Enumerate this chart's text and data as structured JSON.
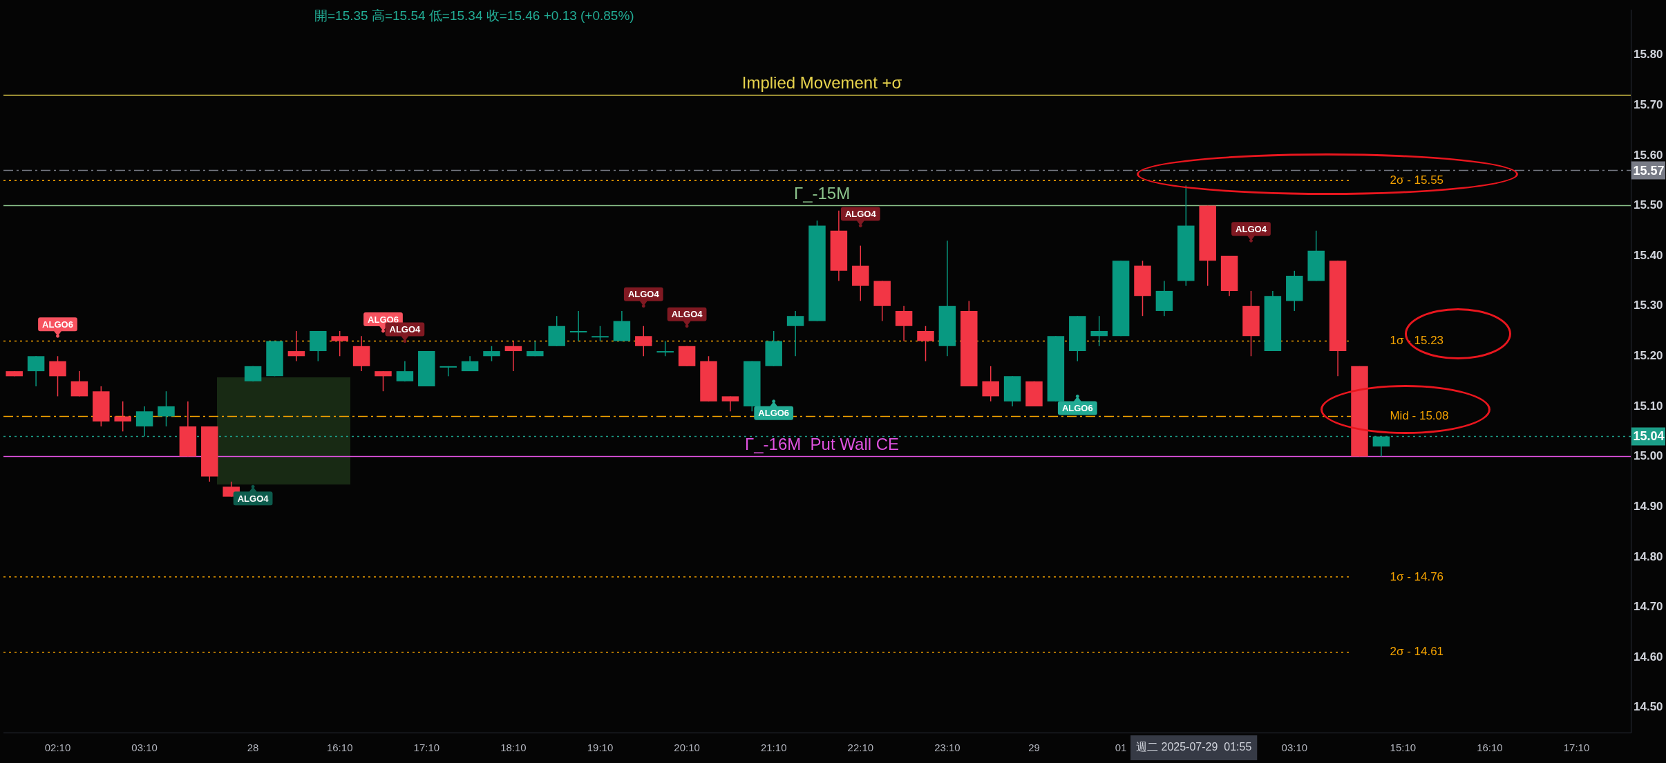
{
  "chart_data": {
    "type": "candlestick",
    "subtitle": "開=15.35 高=15.54 低=15.34 收=15.46 +0.13 (+0.85%)",
    "categories": [
      null,
      null,
      "02:10",
      null,
      null,
      null,
      "03:10",
      null,
      null,
      null,
      null,
      "28",
      null,
      null,
      null,
      "16:10",
      null,
      null,
      null,
      "17:10",
      null,
      null,
      null,
      "18:10",
      null,
      null,
      null,
      "19:10",
      null,
      null,
      null,
      "20:10",
      null,
      null,
      null,
      "21:10",
      null,
      null,
      null,
      "22:10",
      null,
      null,
      null,
      "23:10",
      null,
      null,
      null,
      "29",
      null,
      null,
      null,
      "01",
      null,
      null,
      null,
      null,
      null,
      null,
      null,
      "03:10",
      null,
      null,
      null,
      null,
      "15:10",
      null,
      null,
      null,
      "16:10",
      null,
      null,
      null,
      "17:10",
      null,
      null
    ],
    "ohlc": [
      [
        15.17,
        15.17,
        15.16,
        15.16
      ],
      [
        15.17,
        15.2,
        15.14,
        15.2
      ],
      [
        15.19,
        15.2,
        15.12,
        15.16
      ],
      [
        15.15,
        15.17,
        15.12,
        15.12
      ],
      [
        15.13,
        15.14,
        15.06,
        15.07
      ],
      [
        15.08,
        15.11,
        15.05,
        15.07
      ],
      [
        15.06,
        15.1,
        15.04,
        15.09
      ],
      [
        15.08,
        15.13,
        15.06,
        15.1
      ],
      [
        15.06,
        15.11,
        15.0,
        15.0
      ],
      [
        15.06,
        15.06,
        14.95,
        14.96
      ],
      [
        14.94,
        14.95,
        14.92,
        14.92
      ],
      [
        15.15,
        15.18,
        15.15,
        15.18
      ],
      [
        15.16,
        15.23,
        15.16,
        15.23
      ],
      [
        15.21,
        15.25,
        15.19,
        15.2
      ],
      [
        15.21,
        15.25,
        15.19,
        15.25
      ],
      [
        15.24,
        15.25,
        15.2,
        15.23
      ],
      [
        15.22,
        15.24,
        15.17,
        15.18
      ],
      [
        15.17,
        15.17,
        15.13,
        15.16
      ],
      [
        15.15,
        15.19,
        15.15,
        15.17
      ],
      [
        15.14,
        15.21,
        15.14,
        15.21
      ],
      [
        15.18,
        15.18,
        15.16,
        15.18
      ],
      [
        15.17,
        15.2,
        15.17,
        15.19
      ],
      [
        15.2,
        15.22,
        15.19,
        15.21
      ],
      [
        15.22,
        15.23,
        15.17,
        15.21
      ],
      [
        15.2,
        15.23,
        15.2,
        15.21
      ],
      [
        15.22,
        15.28,
        15.22,
        15.26
      ],
      [
        15.25,
        15.29,
        15.23,
        15.25
      ],
      [
        15.24,
        15.26,
        15.23,
        15.24
      ],
      [
        15.23,
        15.29,
        15.23,
        15.27
      ],
      [
        15.24,
        15.26,
        15.2,
        15.22
      ],
      [
        15.21,
        15.23,
        15.2,
        15.21
      ],
      [
        15.22,
        15.22,
        15.18,
        15.18
      ],
      [
        15.19,
        15.2,
        15.11,
        15.11
      ],
      [
        15.12,
        15.12,
        15.09,
        15.11
      ],
      [
        15.1,
        15.19,
        15.09,
        15.19
      ],
      [
        15.18,
        15.25,
        15.18,
        15.23
      ],
      [
        15.26,
        15.29,
        15.2,
        15.28
      ],
      [
        15.27,
        15.47,
        15.27,
        15.46
      ],
      [
        15.45,
        15.49,
        15.35,
        15.37
      ],
      [
        15.38,
        15.42,
        15.31,
        15.34
      ],
      [
        15.35,
        15.35,
        15.27,
        15.3
      ],
      [
        15.29,
        15.3,
        15.23,
        15.26
      ],
      [
        15.25,
        15.26,
        15.19,
        15.23
      ],
      [
        15.22,
        15.43,
        15.2,
        15.3
      ],
      [
        15.29,
        15.31,
        15.14,
        15.14
      ],
      [
        15.15,
        15.18,
        15.11,
        15.12
      ],
      [
        15.11,
        15.16,
        15.1,
        15.16
      ],
      [
        15.15,
        15.15,
        15.1,
        15.1
      ],
      [
        15.11,
        15.24,
        15.11,
        15.24
      ],
      [
        15.21,
        15.28,
        15.19,
        15.28
      ],
      [
        15.24,
        15.28,
        15.22,
        15.25
      ],
      [
        15.24,
        15.39,
        15.24,
        15.39
      ],
      [
        15.38,
        15.39,
        15.28,
        15.32
      ],
      [
        15.29,
        15.35,
        15.28,
        15.33
      ],
      [
        15.35,
        15.54,
        15.34,
        15.46
      ],
      [
        15.5,
        15.5,
        15.34,
        15.39
      ],
      [
        15.4,
        15.4,
        15.32,
        15.33
      ],
      [
        15.3,
        15.33,
        15.2,
        15.24
      ],
      [
        15.21,
        15.33,
        15.21,
        15.32
      ],
      [
        15.31,
        15.37,
        15.29,
        15.36
      ],
      [
        15.35,
        15.45,
        15.35,
        15.41
      ],
      [
        15.39,
        15.39,
        15.16,
        15.21
      ],
      [
        15.18,
        15.18,
        15.0,
        15.0
      ],
      [
        15.02,
        15.04,
        15.0,
        15.04
      ],
      null,
      null,
      null,
      null,
      null,
      null,
      null,
      null,
      null,
      null,
      null
    ],
    "series": [
      {
        "type": "scatter",
        "color": "#f7525f",
        "values": [
          null,
          null,
          15.24,
          null,
          null,
          null,
          null,
          null,
          null,
          null,
          null,
          null,
          null,
          null,
          null,
          null,
          null,
          15.25,
          null,
          null,
          null,
          null,
          null,
          null,
          null,
          null,
          null,
          null,
          null,
          null,
          null,
          null,
          null,
          null,
          null,
          null,
          null,
          null,
          null,
          null,
          null,
          null,
          null,
          null,
          null,
          null,
          null,
          null,
          null,
          null,
          null,
          null,
          null,
          null,
          null,
          null,
          null,
          null,
          null,
          null,
          null,
          null,
          null,
          null,
          null,
          null,
          null,
          null,
          null,
          null,
          null,
          null,
          null,
          null,
          null
        ],
        "value_labels": [
          null,
          null,
          "ALGO6",
          null,
          null,
          null,
          null,
          null,
          null,
          null,
          null,
          null,
          null,
          null,
          null,
          null,
          null,
          "ALGO6",
          null,
          null,
          null,
          null,
          null,
          null,
          null,
          null,
          null,
          null,
          null,
          null,
          null,
          null,
          null,
          null,
          null,
          null,
          null,
          null,
          null,
          null,
          null,
          null,
          null,
          null,
          null,
          null,
          null,
          null,
          null,
          null,
          null,
          null,
          null,
          null,
          null,
          null,
          null,
          null,
          null,
          null,
          null,
          null,
          null,
          null,
          null,
          null,
          null,
          null,
          null,
          null,
          null,
          null,
          null,
          null,
          null
        ]
      },
      {
        "type": "scatter",
        "color": "#801922",
        "values": [
          null,
          null,
          null,
          null,
          null,
          null,
          null,
          null,
          null,
          null,
          null,
          null,
          null,
          null,
          null,
          null,
          null,
          null,
          15.23,
          null,
          null,
          null,
          null,
          null,
          null,
          null,
          null,
          null,
          null,
          15.3,
          null,
          15.26,
          null,
          null,
          null,
          null,
          null,
          null,
          null,
          15.46,
          null,
          null,
          null,
          null,
          null,
          null,
          null,
          null,
          null,
          null,
          null,
          null,
          null,
          null,
          null,
          null,
          null,
          15.43,
          null,
          null,
          null,
          null,
          null,
          null,
          null,
          null,
          null,
          null,
          null,
          null,
          null,
          null,
          null,
          null,
          null
        ],
        "value_labels": [
          null,
          null,
          null,
          null,
          null,
          null,
          null,
          null,
          null,
          null,
          null,
          null,
          null,
          null,
          null,
          null,
          null,
          null,
          "ALGO4",
          null,
          null,
          null,
          null,
          null,
          null,
          null,
          null,
          null,
          null,
          "ALGO4",
          null,
          "ALGO4",
          null,
          null,
          null,
          null,
          null,
          null,
          null,
          "ALGO4",
          null,
          null,
          null,
          null,
          null,
          null,
          null,
          null,
          null,
          null,
          null,
          null,
          null,
          null,
          null,
          null,
          null,
          "ALGO4",
          null,
          null,
          null,
          null,
          null,
          null,
          null,
          null,
          null,
          null,
          null,
          null,
          null,
          null,
          null,
          null,
          null
        ]
      },
      {
        "type": "scatter",
        "color": "#0d5c4d",
        "values": [
          null,
          null,
          null,
          null,
          null,
          null,
          null,
          null,
          null,
          null,
          null,
          14.94,
          null,
          null,
          null,
          null,
          null,
          null,
          null,
          null,
          null,
          null,
          null,
          null,
          null,
          null,
          null,
          null,
          null,
          null,
          null,
          null,
          null,
          null,
          null,
          null,
          null,
          null,
          null,
          null,
          null,
          null,
          null,
          null,
          null,
          null,
          null,
          null,
          null,
          null,
          null,
          null,
          null,
          null,
          null,
          null,
          null,
          null,
          null,
          null,
          null,
          null,
          null,
          null,
          null,
          null,
          null,
          null,
          null,
          null,
          null,
          null,
          null,
          null,
          null
        ],
        "value_labels": [
          null,
          null,
          null,
          null,
          null,
          null,
          null,
          null,
          null,
          null,
          null,
          "ALGO4",
          null,
          null,
          null,
          null,
          null,
          null,
          null,
          null,
          null,
          null,
          null,
          null,
          null,
          null,
          null,
          null,
          null,
          null,
          null,
          null,
          null,
          null,
          null,
          null,
          null,
          null,
          null,
          null,
          null,
          null,
          null,
          null,
          null,
          null,
          null,
          null,
          null,
          null,
          null,
          null,
          null,
          null,
          null,
          null,
          null,
          null,
          null,
          null,
          null,
          null,
          null,
          null,
          null,
          null,
          null,
          null,
          null,
          null,
          null,
          null,
          null,
          null,
          null
        ]
      },
      {
        "type": "scatter",
        "color": "#22ab94",
        "values": [
          null,
          null,
          null,
          null,
          null,
          null,
          null,
          null,
          null,
          null,
          null,
          null,
          null,
          null,
          null,
          null,
          null,
          null,
          null,
          null,
          null,
          null,
          null,
          null,
          null,
          null,
          null,
          null,
          null,
          null,
          null,
          null,
          null,
          null,
          null,
          15.11,
          null,
          null,
          null,
          null,
          null,
          null,
          null,
          null,
          null,
          null,
          null,
          null,
          null,
          15.12,
          null,
          null,
          null,
          null,
          null,
          null,
          null,
          null,
          null,
          null,
          null,
          null,
          null,
          null,
          null,
          null,
          null,
          null,
          null,
          null,
          null,
          null,
          null,
          null,
          null
        ],
        "value_labels": [
          null,
          null,
          null,
          null,
          null,
          null,
          null,
          null,
          null,
          null,
          null,
          null,
          null,
          null,
          null,
          null,
          null,
          null,
          null,
          null,
          null,
          null,
          null,
          null,
          null,
          null,
          null,
          null,
          null,
          null,
          null,
          null,
          null,
          null,
          null,
          "ALGO6",
          null,
          null,
          null,
          null,
          null,
          null,
          null,
          null,
          null,
          null,
          null,
          null,
          null,
          "ALGO6",
          null,
          null,
          null,
          null,
          null,
          null,
          null,
          null,
          null,
          null,
          null,
          null,
          null,
          null,
          null,
          null,
          null,
          null,
          null,
          null,
          null,
          null,
          null,
          null,
          null
        ]
      }
    ],
    "ylim": [
      14.45,
      15.89
    ],
    "yticks": [
      {
        "value": 14.5,
        "label": "14.50"
      },
      {
        "value": 14.6,
        "label": "14.60"
      },
      {
        "value": 14.7,
        "label": "14.70"
      },
      {
        "value": 14.8,
        "label": "14.80"
      },
      {
        "value": 14.9,
        "label": "14.90"
      },
      {
        "value": 15.0,
        "label": "15.00"
      },
      {
        "value": 15.1,
        "label": "15.10"
      },
      {
        "value": 15.2,
        "label": "15.20"
      },
      {
        "value": 15.3,
        "label": "15.30"
      },
      {
        "value": 15.4,
        "label": "15.40"
      },
      {
        "value": 15.5,
        "label": "15.50"
      },
      {
        "value": 15.6,
        "label": "15.60"
      },
      {
        "value": 15.7,
        "label": "15.70"
      },
      {
        "value": 15.8,
        "label": "15.80"
      }
    ],
    "ref_lines": [
      {
        "axis": "y",
        "value": 15.72,
        "label": "Implied Movement +σ",
        "color": "#e8d44d",
        "line_style": "solid"
      },
      {
        "axis": "y",
        "value": 15.5,
        "label": "Γ_-15M",
        "color": "#8cc48c",
        "line_style": "solid"
      },
      {
        "axis": "y",
        "value": 15.0,
        "label": "Γ_-16M  Put Wall CE",
        "color": "#e052e0",
        "line_style": "solid"
      },
      {
        "axis": "y",
        "value": 15.55,
        "label": "2σ - 15.55",
        "color": "#f5a300",
        "line_style": "dotted"
      },
      {
        "axis": "y",
        "value": 15.23,
        "label": "1σ - 15.23",
        "color": "#f5a300",
        "line_style": "dotted"
      },
      {
        "axis": "y",
        "value": 15.08,
        "label": "Mid - 15.08",
        "color": "#f5a300",
        "line_style": "dashed"
      },
      {
        "axis": "y",
        "value": 14.76,
        "label": "1σ - 14.76",
        "color": "#f5a300",
        "line_style": "dotted"
      },
      {
        "axis": "y",
        "value": 14.61,
        "label": "2σ - 14.61",
        "color": "#f5a300",
        "line_style": "dotted"
      },
      {
        "axis": "y",
        "value": 15.57,
        "color": "#787b86",
        "line_style": "dashed"
      },
      {
        "axis": "y",
        "value": 15.04,
        "color": "#1c9e88",
        "line_style": "dotted"
      }
    ],
    "annotations": [
      "15.57",
      "15.04",
      "週二 2025-07-29  01:55"
    ]
  }
}
